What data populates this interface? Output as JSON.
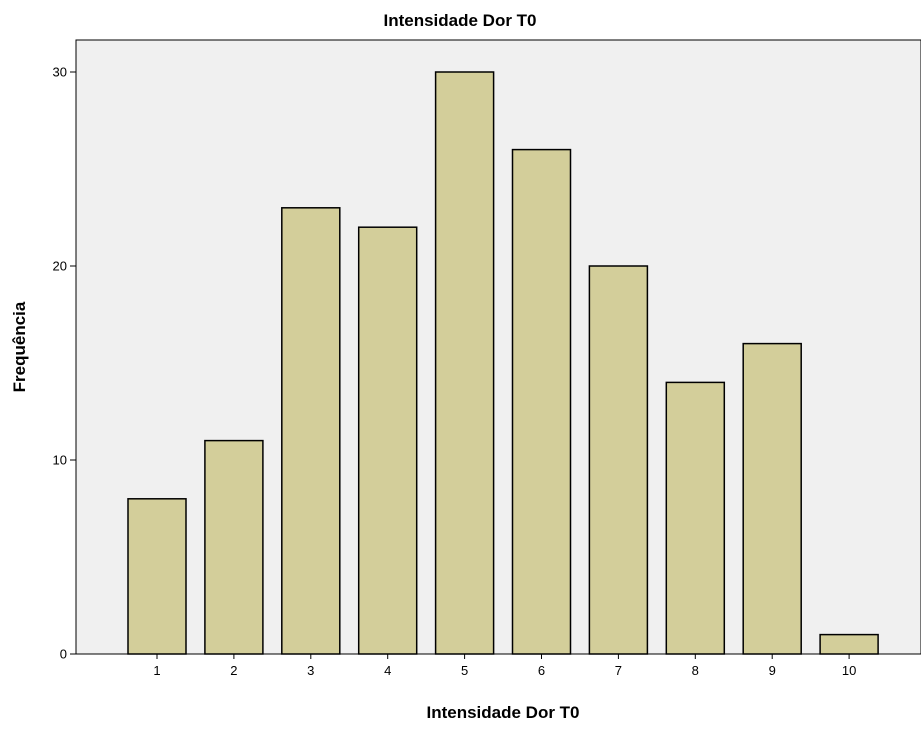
{
  "chart_data": {
    "type": "bar",
    "title": "Intensidade Dor T0",
    "xlabel": "Intensidade Dor T0",
    "ylabel": "Frequência",
    "categories": [
      "1",
      "2",
      "3",
      "4",
      "5",
      "6",
      "7",
      "8",
      "9",
      "10"
    ],
    "values": [
      8,
      11,
      23,
      22,
      30,
      26,
      20,
      14,
      16,
      1
    ],
    "ylim": [
      0,
      30
    ],
    "yticks": [
      "0",
      "10",
      "20",
      "30"
    ],
    "grid": false,
    "legend": "none",
    "colors": {
      "bar_fill": "#d3ce9a",
      "bar_stroke": "#000000",
      "plot_background": "#f0f0f0",
      "axis": "#000000"
    }
  }
}
